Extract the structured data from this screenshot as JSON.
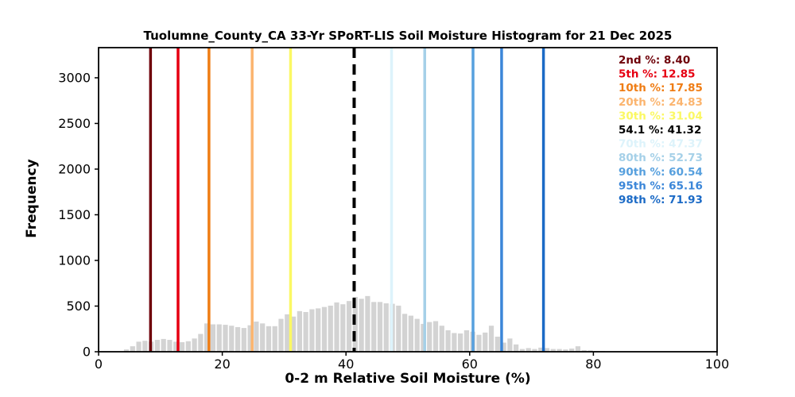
{
  "chart_data": {
    "type": "bar",
    "title": "Tuolumne_County_CA 33-Yr SPoRT-LIS Soil Moisture Histogram for 21 Dec 2025",
    "xlabel": "0-2 m Relative Soil Moisture (%)",
    "ylabel": "Frequency",
    "xlim": [
      0,
      100
    ],
    "ylim": [
      0,
      3330
    ],
    "x_ticks": [
      0,
      20,
      40,
      60,
      80,
      100
    ],
    "y_ticks": [
      0,
      500,
      1000,
      1500,
      2000,
      2500,
      3000
    ],
    "grid": false,
    "legend_position": "top-right-inside",
    "bar_color": "#d3d3d3",
    "bin_start": 4,
    "bin_width": 1,
    "frequencies": [
      25,
      60,
      110,
      120,
      110,
      130,
      140,
      130,
      110,
      105,
      115,
      145,
      195,
      310,
      300,
      300,
      295,
      285,
      270,
      260,
      290,
      330,
      310,
      280,
      280,
      360,
      410,
      385,
      445,
      435,
      465,
      475,
      490,
      505,
      540,
      520,
      555,
      600,
      580,
      610,
      545,
      545,
      530,
      525,
      505,
      415,
      395,
      360,
      305,
      325,
      335,
      285,
      235,
      205,
      200,
      235,
      220,
      185,
      210,
      285,
      165,
      100,
      145,
      80,
      30,
      40,
      30,
      45,
      40,
      30,
      30,
      25,
      35,
      60,
      18,
      15,
      8,
      8
    ],
    "percentile_lines": [
      {
        "label": "2nd %",
        "value": 8.4,
        "value_str": "8.40",
        "color": "#6f0008",
        "style": "solid"
      },
      {
        "label": "5th %",
        "value": 12.85,
        "value_str": "12.85",
        "color": "#e60011",
        "style": "solid"
      },
      {
        "label": "10th %",
        "value": 17.85,
        "value_str": "17.85",
        "color": "#ef7d15",
        "style": "solid"
      },
      {
        "label": "20th %",
        "value": 24.83,
        "value_str": "24.83",
        "color": "#fbb46e",
        "style": "solid"
      },
      {
        "label": "30th %",
        "value": 31.04,
        "value_str": "31.04",
        "color": "#fbf863",
        "style": "solid"
      },
      {
        "label": "54.1 %",
        "value": 41.32,
        "value_str": "41.32",
        "color": "#000000",
        "style": "dashed"
      },
      {
        "label": "70th %",
        "value": 47.37,
        "value_str": "47.37",
        "color": "#ddf3fb",
        "style": "solid"
      },
      {
        "label": "80th %",
        "value": 52.73,
        "value_str": "52.73",
        "color": "#a5d0e8",
        "style": "solid"
      },
      {
        "label": "90th %",
        "value": 60.54,
        "value_str": "60.54",
        "color": "#57a0de",
        "style": "solid"
      },
      {
        "label": "95th %",
        "value": 65.16,
        "value_str": "65.16",
        "color": "#3b86d8",
        "style": "solid"
      },
      {
        "label": "98th %",
        "value": 71.93,
        "value_str": "71.93",
        "color": "#1b6ac6",
        "style": "solid"
      }
    ]
  }
}
